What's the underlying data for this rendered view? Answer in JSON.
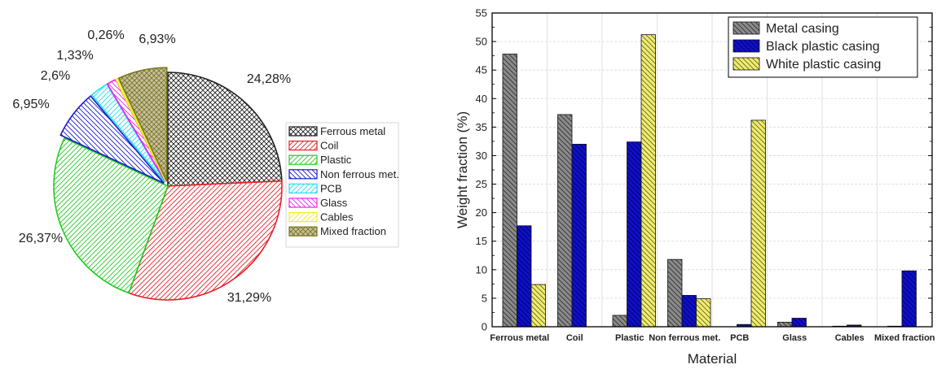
{
  "chart_data": [
    {
      "type": "pie",
      "slices": [
        {
          "label": "Ferrous metal",
          "value": 24.28,
          "value_label": "24,28%",
          "color": "#222222",
          "pattern": "cross"
        },
        {
          "label": "Coil",
          "value": 31.29,
          "value_label": "31,29%",
          "color": "#e8202a",
          "pattern": "diag"
        },
        {
          "label": "Plastic",
          "value": 26.37,
          "value_label": "26,37%",
          "color": "#22cc22",
          "pattern": "diag"
        },
        {
          "label": "Non ferrous met.",
          "value": 6.95,
          "value_label": "6,95%",
          "color": "#1a1acc",
          "pattern": "back"
        },
        {
          "label": "PCB",
          "value": 2.6,
          "value_label": "2,6%",
          "color": "#22ddee",
          "pattern": "diag"
        },
        {
          "label": "Glass",
          "value": 1.33,
          "value_label": "1,33%",
          "color": "#ee22ee",
          "pattern": "back"
        },
        {
          "label": "Cables",
          "value": 0.26,
          "value_label": "0,26%",
          "color": "#eeee22",
          "pattern": "diag"
        },
        {
          "label": "Mixed fraction",
          "value": 6.93,
          "value_label": "6,93%",
          "color": "#777722",
          "pattern": "cross",
          "fill": "#c8bfa0"
        }
      ],
      "legend_position": "right"
    },
    {
      "type": "bar",
      "xlabel": "Material",
      "ylabel": "Weight fraction (%)",
      "ylim": [
        0,
        55
      ],
      "yticks": [
        0,
        5,
        10,
        15,
        20,
        25,
        30,
        35,
        40,
        45,
        50,
        55
      ],
      "grid": true,
      "legend_position": "top-right",
      "categories": [
        "Ferrous metal",
        "Coil",
        "Plastic",
        "Non ferrous met.",
        "PCB",
        "Glass",
        "Cables",
        "Mixed fraction"
      ],
      "series": [
        {
          "name": "Metal casing",
          "color": "#8a8a8a",
          "values": [
            47.8,
            37.2,
            2.0,
            11.8,
            0,
            0.8,
            0.1,
            0.1
          ]
        },
        {
          "name": "Black plastic casing",
          "color": "#1010c8",
          "values": [
            17.7,
            32.0,
            32.4,
            5.5,
            0.4,
            1.5,
            0.3,
            9.8
          ]
        },
        {
          "name": "White plastic casing",
          "color": "#f0ec70",
          "values": [
            7.4,
            0,
            51.2,
            4.9,
            36.2,
            0,
            0,
            0
          ]
        }
      ]
    }
  ]
}
